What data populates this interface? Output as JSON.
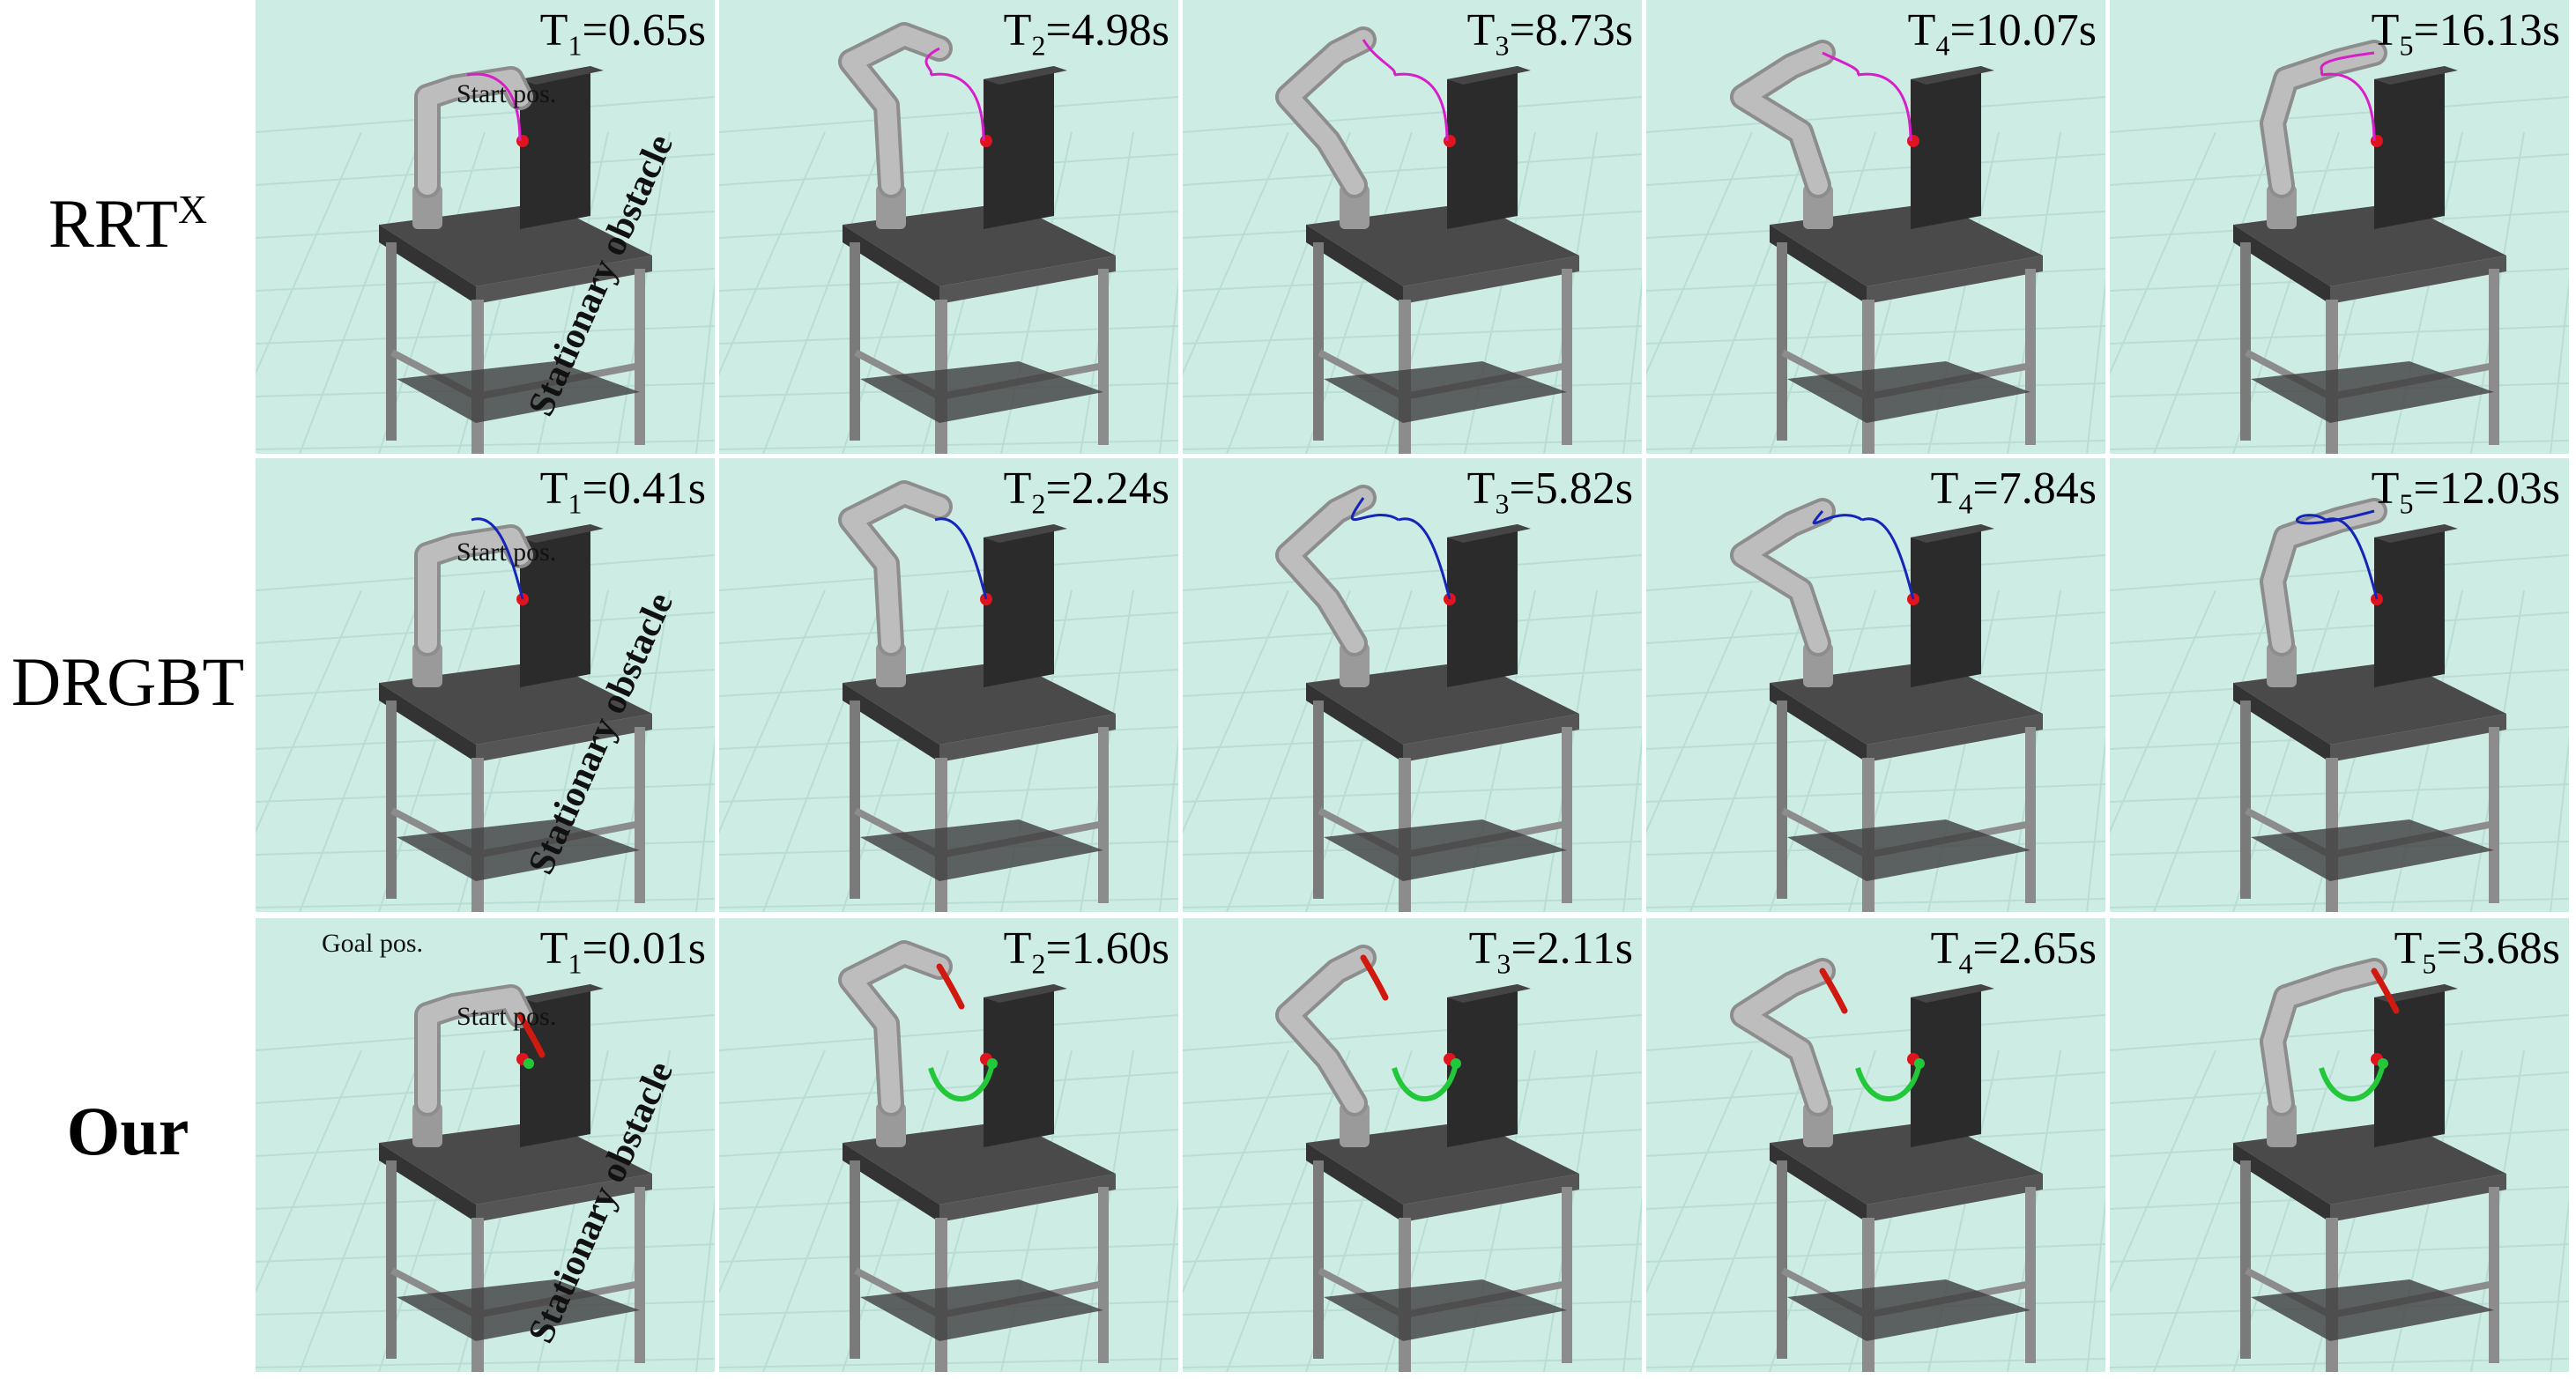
{
  "rows": [
    {
      "method": "RRT",
      "sup": "X",
      "bold": false,
      "panels": [
        {
          "index": "1",
          "time": "0.65s"
        },
        {
          "index": "2",
          "time": "4.98s"
        },
        {
          "index": "3",
          "time": "8.73s"
        },
        {
          "index": "4",
          "time": "10.07s"
        },
        {
          "index": "5",
          "time": "16.13s"
        }
      ]
    },
    {
      "method": "DRGBT",
      "sup": "",
      "bold": false,
      "panels": [
        {
          "index": "1",
          "time": "0.41s"
        },
        {
          "index": "2",
          "time": "2.24s"
        },
        {
          "index": "3",
          "time": "5.82s"
        },
        {
          "index": "4",
          "time": "7.84s"
        },
        {
          "index": "5",
          "time": "12.03s"
        }
      ]
    },
    {
      "method": "Our",
      "sup": "",
      "bold": true,
      "panels": [
        {
          "index": "1",
          "time": "0.01s"
        },
        {
          "index": "2",
          "time": "1.60s"
        },
        {
          "index": "3",
          "time": "2.11s"
        },
        {
          "index": "4",
          "time": "2.65s"
        },
        {
          "index": "5",
          "time": "3.68s"
        }
      ]
    }
  ],
  "annotations": {
    "start_pos": "Start pos.",
    "goal_pos": "Goal pos.",
    "stationary_obstacle": "Stationary obstacle",
    "time_prefix": "T",
    "time_eq": "="
  },
  "colors": {
    "rrtx_path": "#d81ec8",
    "drgbt_path": "#1525b8",
    "our_path": "#22c83a",
    "our_prediction": "#d01a10",
    "goal_marker": "#e0141e",
    "background": "#cdece4",
    "table": "#4a4a4a",
    "obstacle": "#2b2b2b",
    "robot": "#bdbdbd"
  }
}
